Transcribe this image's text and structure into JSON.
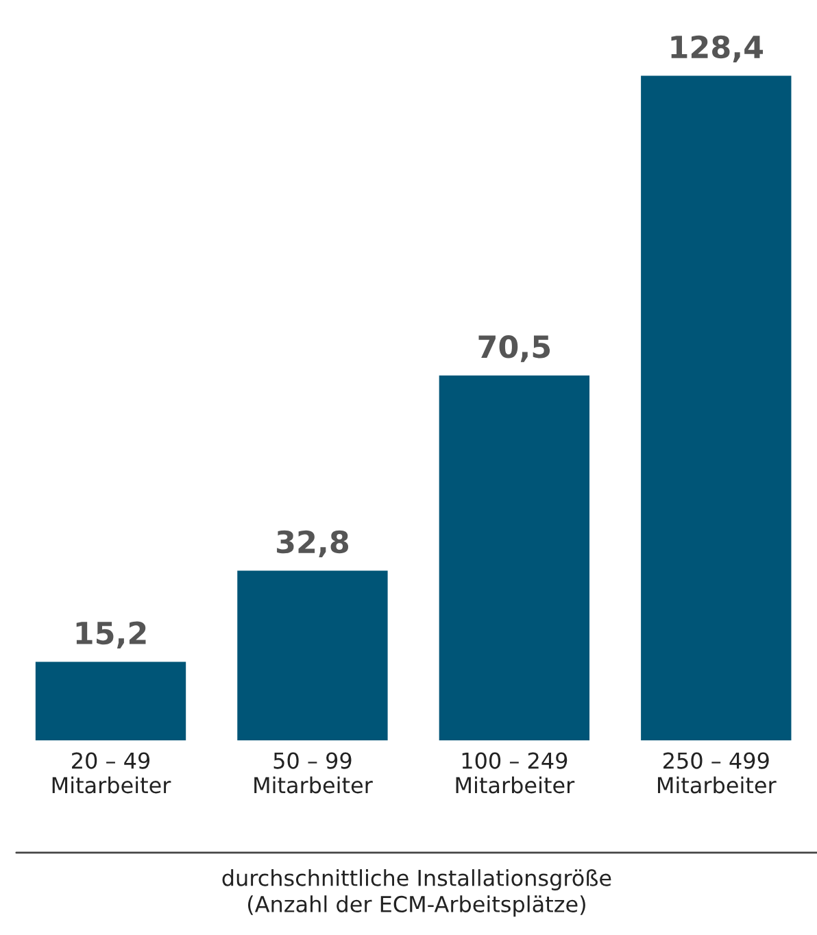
{
  "chart_data": {
    "type": "bar",
    "categories": [
      "20 – 49\nMitarbeiter",
      "50 – 99\nMitarbeiter",
      "100 – 249\nMitarbeiter",
      "250 – 499\nMitarbeiter"
    ],
    "values": [
      15.2,
      32.8,
      70.5,
      128.4
    ],
    "value_labels": [
      "15,2",
      "32,8",
      "70,5",
      "128,4"
    ],
    "color": "#005577",
    "xlabel": "durchschnittliche Installationsgröße\n(Anzahl der ECM-Arbeitsplätze)",
    "grid": false,
    "legend": false
  }
}
